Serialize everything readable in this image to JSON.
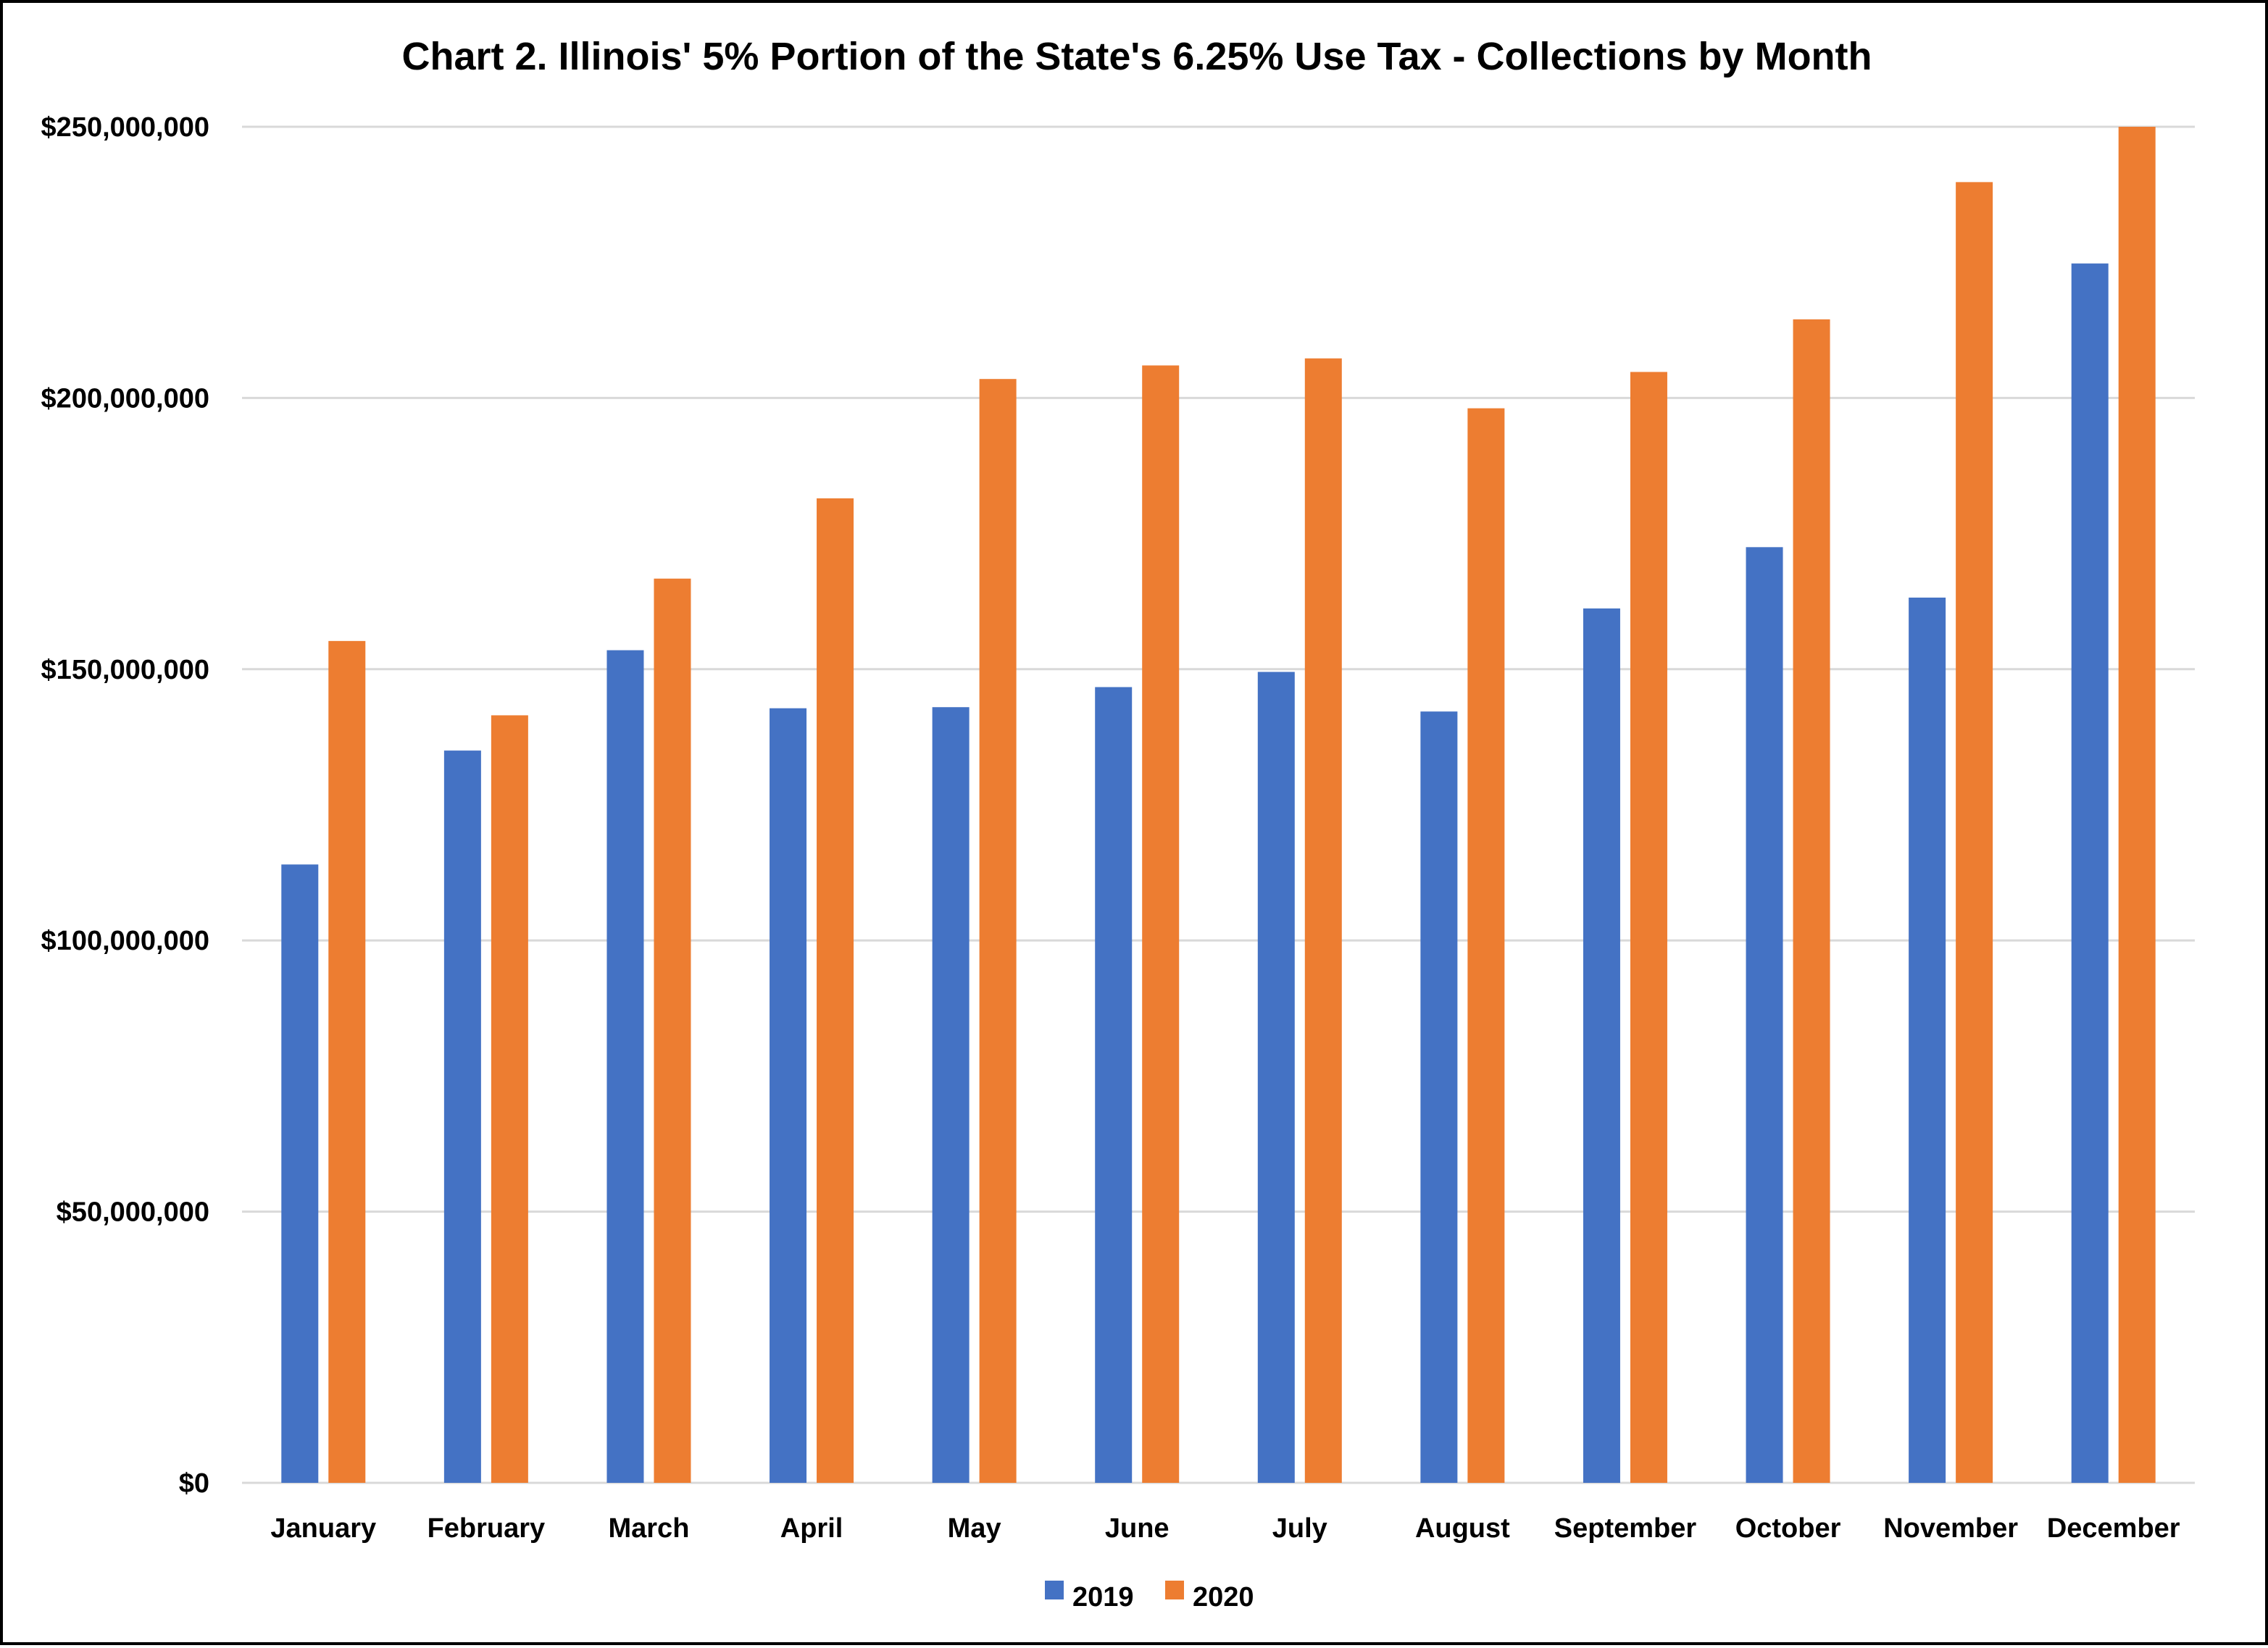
{
  "chart_data": {
    "type": "bar",
    "title": "Chart 2. Illinois' 5% Portion of the State's 6.25% Use Tax - Collections by Month",
    "xlabel": "",
    "ylabel": "",
    "categories": [
      "January",
      "February",
      "March",
      "April",
      "May",
      "June",
      "July",
      "August",
      "September",
      "October",
      "November",
      "December"
    ],
    "series": [
      {
        "name": "2019",
        "color": "#4472c4",
        "values": [
          114000000,
          135000000,
          153500000,
          142800000,
          143000000,
          146700000,
          149500000,
          142200000,
          161200000,
          172500000,
          163200000,
          224800000
        ]
      },
      {
        "name": "2020",
        "color": "#ed7d31",
        "values": [
          155200000,
          141500000,
          166700000,
          181500000,
          203500000,
          206000000,
          207300000,
          198100000,
          204800000,
          214500000,
          239800000,
          250000000
        ]
      }
    ],
    "ylim": [
      0,
      250000000
    ],
    "yticks": [
      0,
      50000000,
      100000000,
      150000000,
      200000000,
      250000000
    ],
    "ytick_labels": [
      "$0",
      "$50,000,000",
      "$100,000,000",
      "$150,000,000",
      "$200,000,000",
      "$250,000,000"
    ],
    "grid": true,
    "legend_position": "bottom"
  }
}
